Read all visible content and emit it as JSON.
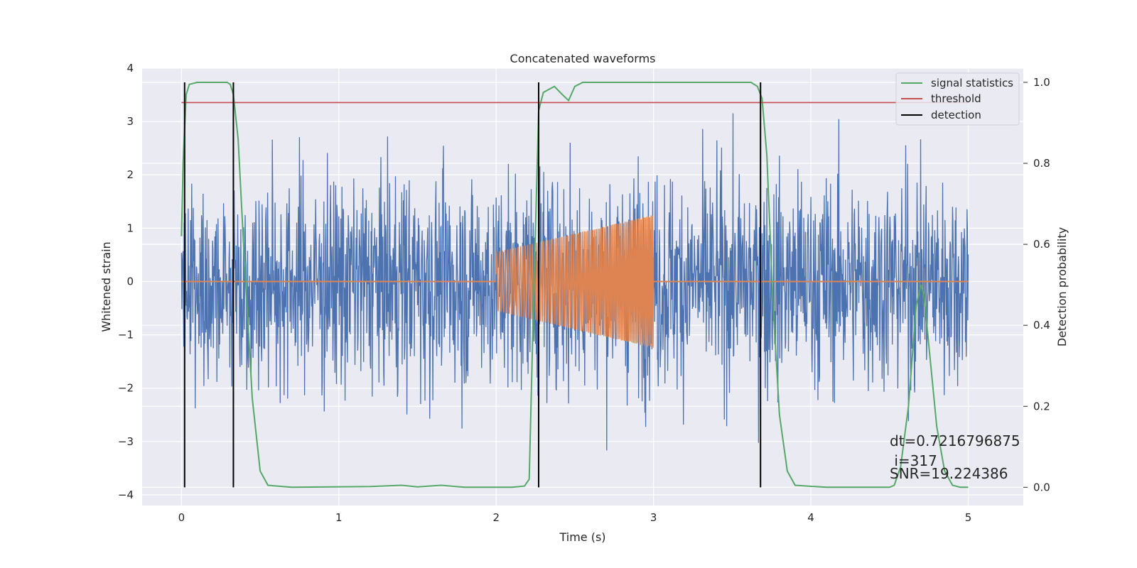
{
  "chart_data": {
    "type": "line",
    "title": "Concatenated waveforms",
    "xlabel": "Time (s)",
    "ylabel": "Whitened strain",
    "y2label": "Detection probability",
    "xlim": [
      -0.25,
      5.35
    ],
    "ylim": [
      -4.2,
      4.0
    ],
    "y2lim": [
      -0.045,
      1.035
    ],
    "xticks": [
      0,
      1,
      2,
      3,
      4,
      5
    ],
    "yticks": [
      -4,
      -3,
      -2,
      -1,
      0,
      1,
      2,
      3,
      4
    ],
    "y2ticks": [
      0.0,
      0.2,
      0.4,
      0.6,
      0.8,
      1.0
    ],
    "grid": true,
    "legend_position": "top-right",
    "colors": {
      "background": "#eaeaf2",
      "grid": "#ffffff",
      "noise": "#4c72b0",
      "template": "#dd8452",
      "statistic": "#55a868",
      "threshold": "#c44e52",
      "detection": "#000000"
    },
    "series": [
      {
        "name": "signal statistics",
        "color": "#55a868",
        "axis": "right",
        "x": [
          0.0,
          0.01,
          0.03,
          0.05,
          0.1,
          0.2,
          0.29,
          0.31,
          0.33,
          0.36,
          0.4,
          0.45,
          0.5,
          0.55,
          0.7,
          1.2,
          1.4,
          1.5,
          1.65,
          1.8,
          2.1,
          2.18,
          2.21,
          2.24,
          2.27,
          2.3,
          2.37,
          2.42,
          2.46,
          2.5,
          2.55,
          2.65,
          3.0,
          3.5,
          3.62,
          3.66,
          3.69,
          3.72,
          3.76,
          3.8,
          3.85,
          3.9,
          4.1,
          4.5,
          4.53,
          4.57,
          4.62,
          4.67,
          4.7,
          4.72,
          4.75,
          4.8,
          4.85,
          4.9,
          4.95,
          5.0
        ],
        "y": [
          0.62,
          0.8,
          0.97,
          0.995,
          1.0,
          1.0,
          1.0,
          0.995,
          0.97,
          0.86,
          0.56,
          0.22,
          0.04,
          0.005,
          0.0,
          0.002,
          0.005,
          0.001,
          0.005,
          0.0,
          0.0,
          0.003,
          0.02,
          0.5,
          0.93,
          0.975,
          0.99,
          0.97,
          0.955,
          0.99,
          1.0,
          1.0,
          1.0,
          1.0,
          1.0,
          0.99,
          0.96,
          0.82,
          0.45,
          0.18,
          0.04,
          0.005,
          0.0,
          0.0,
          0.005,
          0.05,
          0.2,
          0.45,
          0.5,
          0.47,
          0.35,
          0.15,
          0.04,
          0.005,
          0.0,
          0.0
        ]
      },
      {
        "name": "threshold",
        "color": "#c44e52",
        "axis": "right",
        "x": [
          0.0,
          5.0
        ],
        "y": [
          0.95,
          0.95
        ]
      },
      {
        "name": "detection",
        "color": "#000000",
        "axis": "right",
        "x": [
          0.02,
          0.33,
          2.27,
          3.68
        ],
        "y_range": [
          0.0,
          1.0
        ]
      },
      {
        "name": "",
        "color": "#4c72b0",
        "axis": "left",
        "kind": "noise",
        "x_range": [
          0.0,
          5.0
        ],
        "typical_amplitude": 1.0,
        "peak_amplitude": 3.6
      },
      {
        "name": "",
        "color": "#dd8452",
        "axis": "left",
        "kind": "chirp",
        "x_range": [
          2.0,
          3.0
        ],
        "start_amplitude": 0.55,
        "end_amplitude": 1.25,
        "baseline": 0.0
      }
    ],
    "annotations": [
      {
        "text": "dt=0.7216796875",
        "x": 4.5,
        "y": -3.3
      },
      {
        "text": " i=317",
        "x": 4.5,
        "y": -3.7
      },
      {
        "text": "SNR=19.224386",
        "x": 4.5,
        "y": -3.95
      }
    ]
  }
}
